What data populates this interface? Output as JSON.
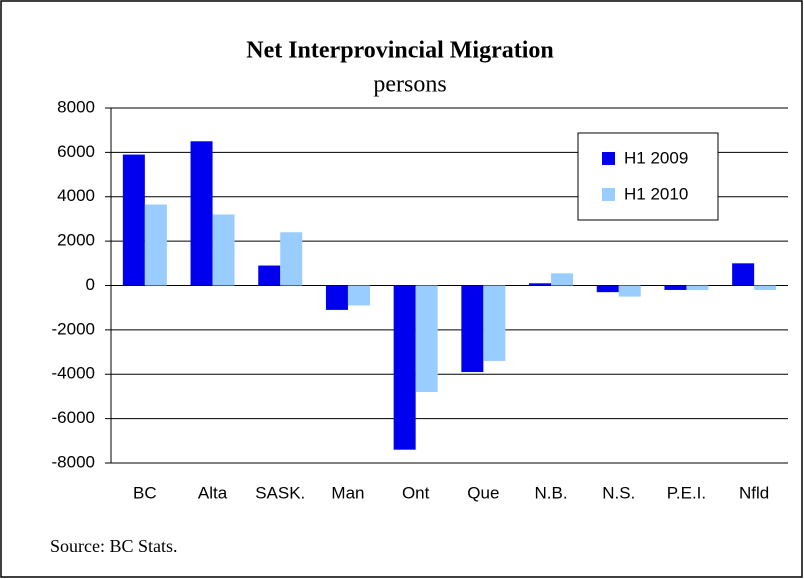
{
  "chart_data": {
    "type": "bar",
    "title": "Net Interprovincial Migration",
    "subtitle": "persons",
    "note": "Source: BC Stats.",
    "categories": [
      "BC",
      "Alta",
      "SASK.",
      "Man",
      "Ont",
      "Que",
      "N.B.",
      "N.S.",
      "P.E.I.",
      "Nfld"
    ],
    "series": [
      {
        "name": "H1 2009",
        "color": "#0000ee",
        "values": [
          5900,
          6500,
          900,
          -1100,
          -7400,
          -3900,
          100,
          -300,
          -200,
          1000
        ]
      },
      {
        "name": "H1 2010",
        "color": "#99ccff",
        "values": [
          3650,
          3200,
          2400,
          -900,
          -4800,
          -3400,
          550,
          -500,
          -200,
          -200
        ]
      }
    ],
    "ylim": [
      -8000,
      8000
    ],
    "yticks": [
      -8000,
      -6000,
      -4000,
      -2000,
      0,
      2000,
      4000,
      6000,
      8000
    ],
    "grid": true,
    "legend": "upper right"
  }
}
